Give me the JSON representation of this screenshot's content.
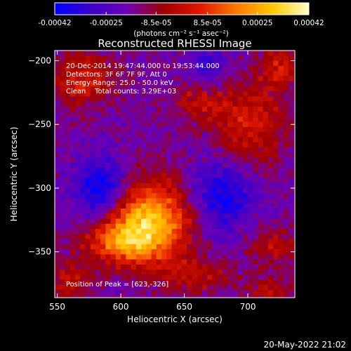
{
  "colorbar": {
    "tick_labels": [
      "-0.00042",
      "-0.00025",
      "-8.5e-05",
      "8.5e-05",
      "0.00025",
      "0.00042"
    ],
    "tick_values": [
      -0.00042,
      -0.00025,
      -8.5e-05,
      8.5e-05,
      0.00025,
      0.00042
    ],
    "range": [
      -0.00042,
      0.00042
    ],
    "units_label": "(photons cm⁻² s⁻¹ asec⁻²)",
    "colormap": [
      "#0000ff",
      "#3c00c8",
      "#6e00b4",
      "#a00000",
      "#e01800",
      "#ff7800",
      "#ffc800",
      "#ffffc8"
    ]
  },
  "chart_data": {
    "type": "heatmap",
    "title": "Reconstructed RHESSI Image",
    "xlabel": "Heliocentric X (arcsec)",
    "ylabel": "Heliocentric Y (arcsec)",
    "xlim": [
      548,
      737
    ],
    "ylim": [
      -386,
      -192
    ],
    "x_ticks": [
      550,
      600,
      650,
      700
    ],
    "y_ticks": [
      -200,
      -250,
      -300,
      -350
    ],
    "x_tick_labels": [
      "550",
      "600",
      "650",
      "700"
    ],
    "y_tick_labels": [
      "−200",
      "−250",
      "−300",
      "−350"
    ],
    "info_lines": [
      "20-Dec-2014 19:47:44.000 to 19:53:44.000",
      "Detectors: 3F 6F 7F 9F, Att 0",
      "Energy Range: 25.0 - 50.0 keV",
      "Clean    Total counts: 3.29E+03"
    ],
    "peak_label": "Position of Peak = [623,-326]",
    "peak": [
      623,
      -326
    ],
    "sources": [
      {
        "x": 623,
        "y": -326,
        "amp": 1.0,
        "sx": 22,
        "sy": 22
      },
      {
        "x": 598,
        "y": -342,
        "amp": 0.55,
        "sx": 20,
        "sy": 12
      },
      {
        "x": 570,
        "y": -215,
        "amp": 0.45,
        "sx": 18,
        "sy": 14
      },
      {
        "x": 700,
        "y": -250,
        "amp": 0.42,
        "sx": 20,
        "sy": 26
      },
      {
        "x": 725,
        "y": -205,
        "amp": 0.38,
        "sx": 10,
        "sy": 12
      },
      {
        "x": 660,
        "y": -232,
        "amp": 0.3,
        "sx": 14,
        "sy": 10
      },
      {
        "x": 560,
        "y": -372,
        "amp": 0.35,
        "sx": 12,
        "sy": 10
      },
      {
        "x": 660,
        "y": -368,
        "amp": 0.3,
        "sx": 20,
        "sy": 10
      },
      {
        "x": 720,
        "y": -345,
        "amp": 0.32,
        "sx": 14,
        "sy": 10
      },
      {
        "x": 718,
        "y": -380,
        "amp": 0.3,
        "sx": 14,
        "sy": 8
      }
    ],
    "negative_regions": [
      {
        "x": 585,
        "y": -300,
        "amp": -0.6,
        "sx": 14,
        "sy": 16
      },
      {
        "x": 680,
        "y": -305,
        "amp": -0.5,
        "sx": 18,
        "sy": 20
      },
      {
        "x": 670,
        "y": -205,
        "amp": -0.35,
        "sx": 10,
        "sy": 10
      }
    ]
  },
  "footer": {
    "timestamp": "20-May-2022 21:02"
  }
}
